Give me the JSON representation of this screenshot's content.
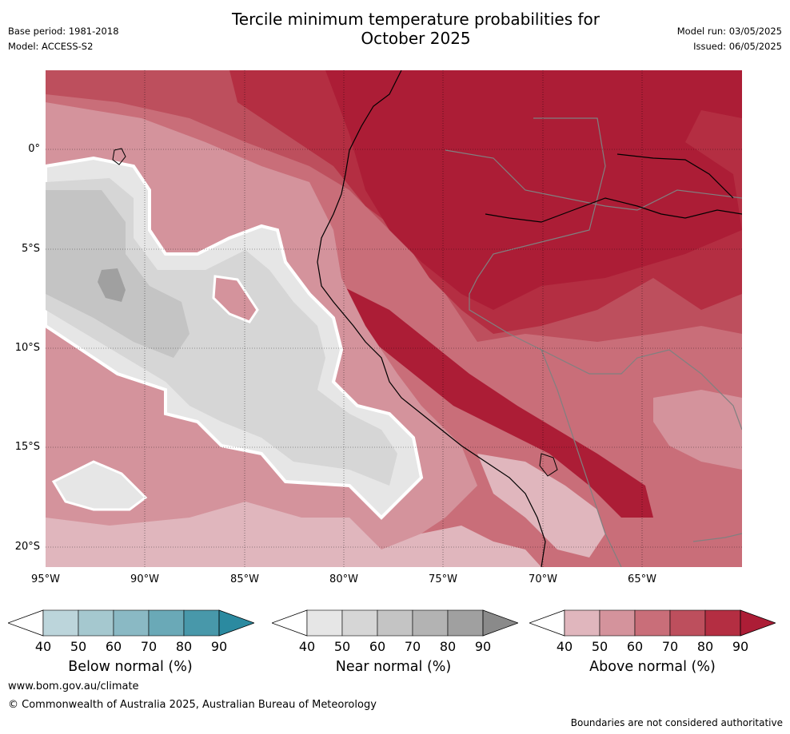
{
  "title_line1": "Tercile minimum temperature probabilities for",
  "title_line2": "October 2025",
  "base_period": "Base period: 1981-2018",
  "model": "Model: ACCESS-S2",
  "model_run": "Model run: 03/05/2025",
  "issued": "Issued: 06/05/2025",
  "map": {
    "lat_labels": [
      "0°",
      "5°S",
      "10°S",
      "15°S",
      "20°S"
    ],
    "lon_labels": [
      "95°W",
      "90°W",
      "85°W",
      "80°W",
      "75°W",
      "70°W",
      "65°W"
    ]
  },
  "colorbars": [
    {
      "label": "Below normal (%)",
      "ticks": [
        "40",
        "50",
        "60",
        "70",
        "80",
        "90"
      ],
      "colors": [
        "#ffffff",
        "#bcd5db",
        "#a5c8cf",
        "#8ab9c4",
        "#6aa9b7",
        "#4898aa",
        "#2b8aa0"
      ]
    },
    {
      "label": "Near normal (%)",
      "ticks": [
        "40",
        "50",
        "60",
        "70",
        "80",
        "90"
      ],
      "colors": [
        "#ffffff",
        "#e6e6e6",
        "#d6d6d6",
        "#c4c4c4",
        "#b3b3b3",
        "#a0a0a0",
        "#8a8a8a"
      ]
    },
    {
      "label": "Above normal (%)",
      "ticks": [
        "40",
        "50",
        "60",
        "70",
        "80",
        "90"
      ],
      "colors": [
        "#ffffff",
        "#e0b6bd",
        "#d4939c",
        "#c96e79",
        "#bd4f5d",
        "#b42e42",
        "#ac1d36"
      ]
    }
  ],
  "footer": {
    "url": "www.bom.gov.au/climate",
    "copyright": "© Commonwealth of Australia 2025, Australian Bureau of Meteorology",
    "disclaimer": "Boundaries are not considered authoritative"
  }
}
